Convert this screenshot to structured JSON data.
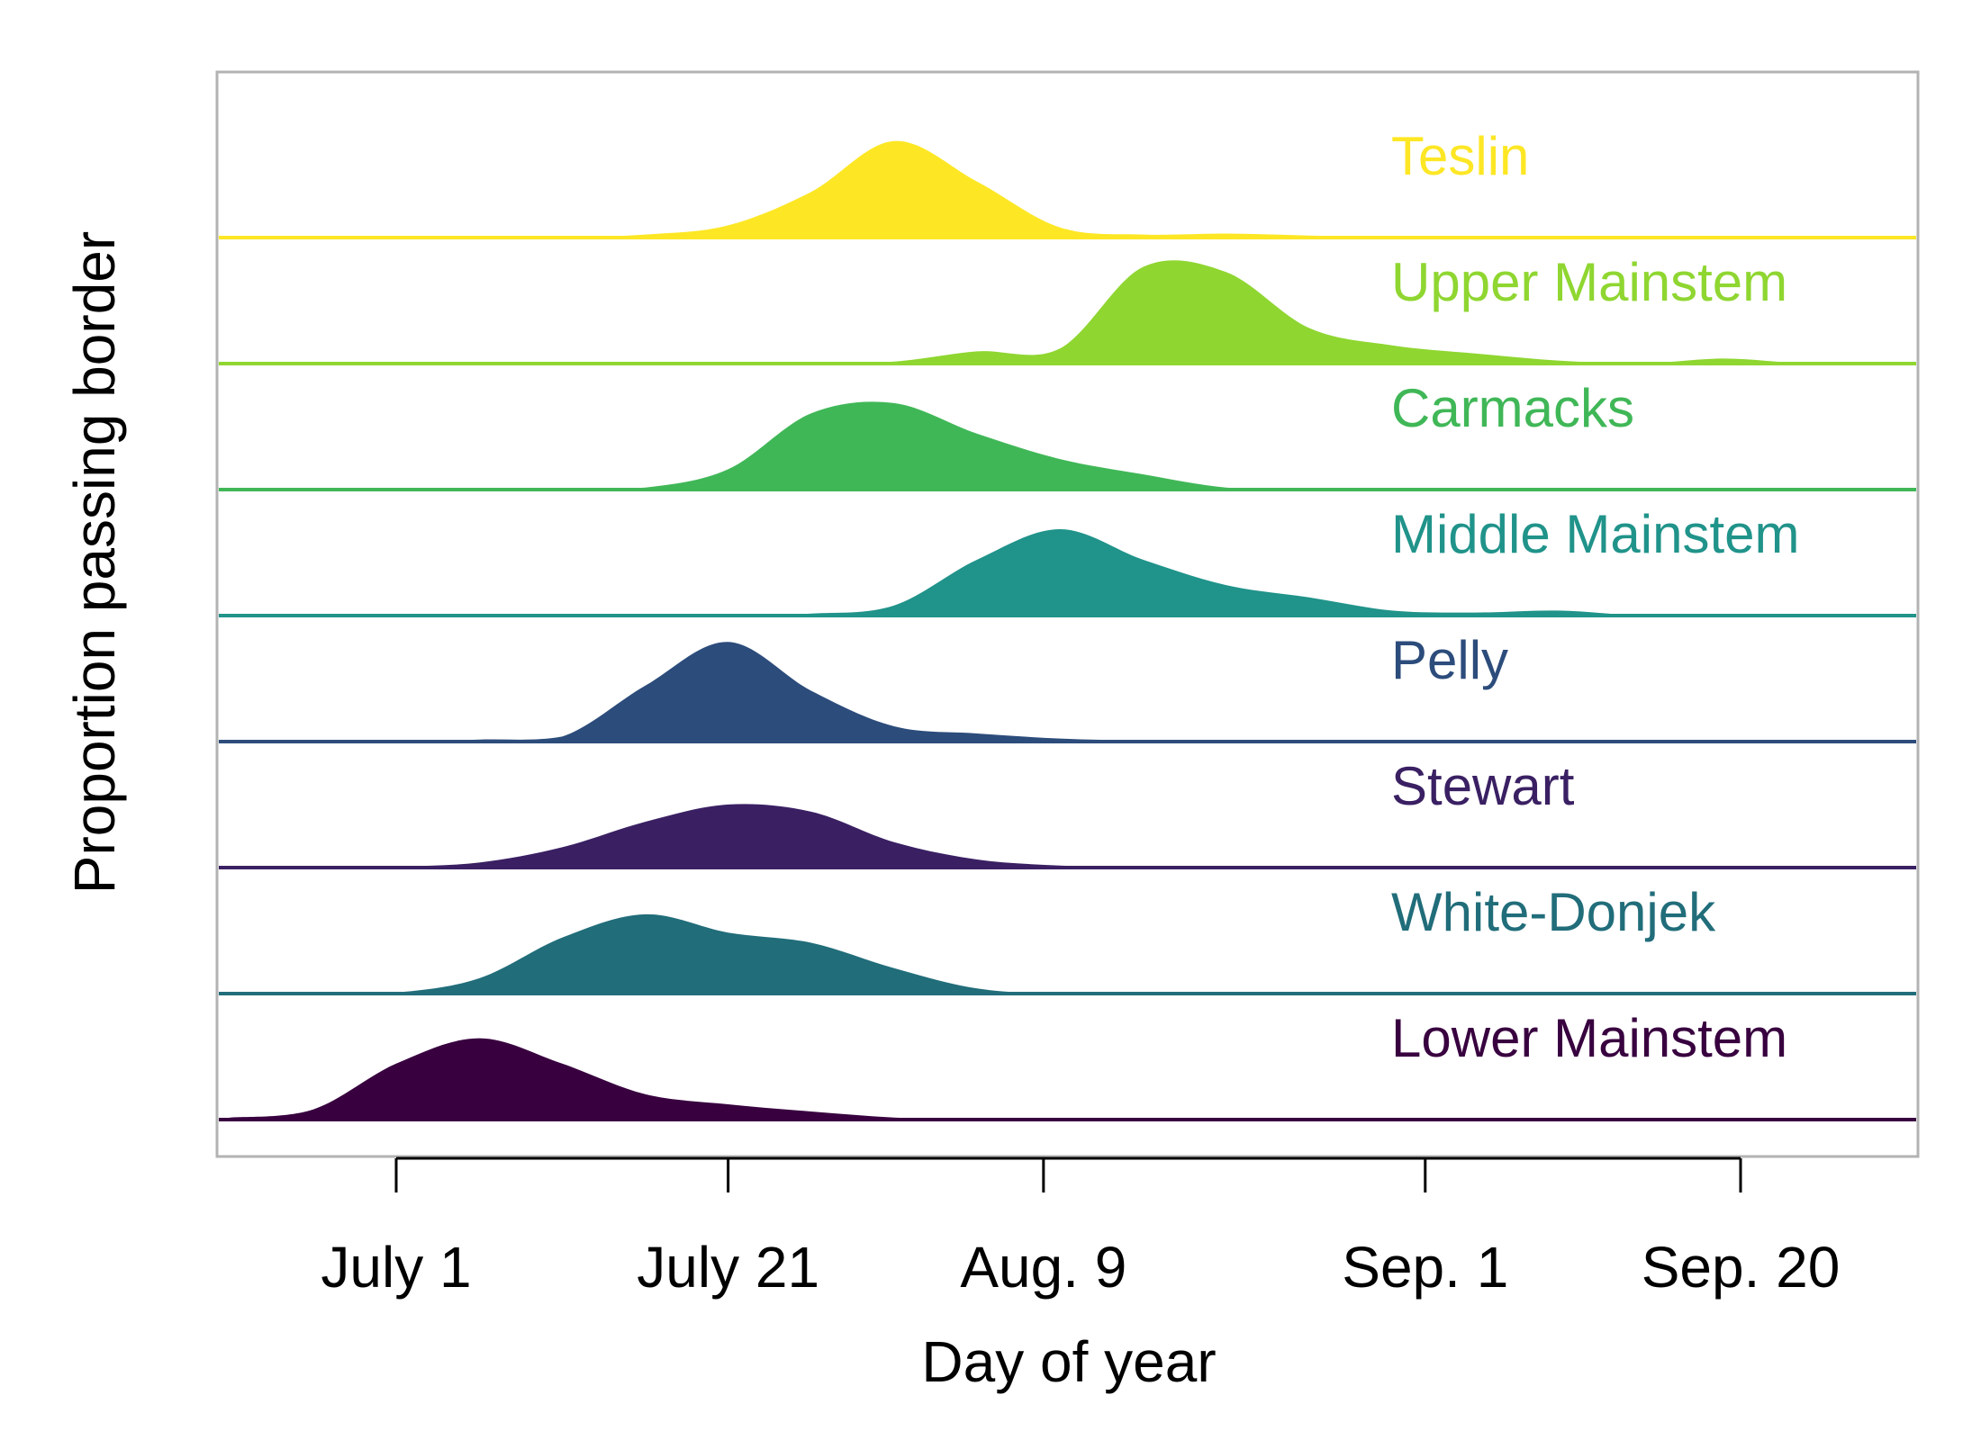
{
  "chart_data": {
    "type": "area",
    "subtype": "ridgeline",
    "xlabel": "Day of year",
    "ylabel": "Proportion passing border",
    "xlim": [
      "June 21",
      "Sep. 29"
    ],
    "x_ticks": [
      {
        "label": "July 1",
        "date": "July 1"
      },
      {
        "label": "July 21",
        "date": "July 21"
      },
      {
        "label": "Aug. 9",
        "date": "Aug. 9"
      },
      {
        "label": "Sep. 1",
        "date": "Sep. 1"
      },
      {
        "label": "Sep. 20",
        "date": "Sep. 20"
      }
    ],
    "x_dates": [
      "June 21",
      "June 26",
      "July 1",
      "July 6",
      "July 11",
      "July 16",
      "July 21",
      "July 26",
      "July 31",
      "Aug. 5",
      "Aug. 10",
      "Aug. 15",
      "Aug. 20",
      "Aug. 25",
      "Aug. 30",
      "Sep. 4",
      "Sep. 9",
      "Sep. 14",
      "Sep. 19",
      "Sep. 24",
      "Sep. 29"
    ],
    "grid": false,
    "legend": "direct labels at right",
    "series": [
      {
        "name": "Teslin",
        "color": "#FDE725",
        "values": [
          0,
          0,
          0,
          0,
          0,
          0.03,
          0.12,
          0.45,
          0.95,
          0.55,
          0.1,
          0.03,
          0.04,
          0.02,
          0,
          0,
          0,
          0,
          0,
          0,
          0
        ]
      },
      {
        "name": "Upper Mainstem",
        "color": "#8FD631",
        "values": [
          0,
          0,
          0,
          0,
          0,
          0,
          0,
          0,
          0.02,
          0.12,
          0.15,
          0.95,
          0.9,
          0.35,
          0.18,
          0.1,
          0.03,
          0,
          0.05,
          0,
          0
        ]
      },
      {
        "name": "Carmacks",
        "color": "#40B757",
        "values": [
          0,
          0,
          0,
          0,
          0,
          0.02,
          0.2,
          0.75,
          0.85,
          0.55,
          0.3,
          0.15,
          0.02,
          0,
          0,
          0,
          0,
          0,
          0,
          0,
          0
        ]
      },
      {
        "name": "Middle Mainstem",
        "color": "#20938A",
        "values": [
          0,
          0,
          0,
          0,
          0,
          0,
          0,
          0.02,
          0.1,
          0.55,
          0.85,
          0.55,
          0.3,
          0.18,
          0.05,
          0.03,
          0.05,
          0,
          0,
          0,
          0
        ]
      },
      {
        "name": "Pelly",
        "color": "#2C4C7B",
        "values": [
          0,
          0,
          0,
          0.02,
          0.05,
          0.55,
          0.98,
          0.5,
          0.15,
          0.08,
          0.03,
          0.01,
          0,
          0,
          0,
          0,
          0,
          0,
          0,
          0,
          0
        ]
      },
      {
        "name": "Stewart",
        "color": "#3A2063",
        "values": [
          0,
          0,
          0.01,
          0.05,
          0.2,
          0.45,
          0.62,
          0.55,
          0.25,
          0.08,
          0.02,
          0,
          0,
          0,
          0,
          0,
          0,
          0,
          0,
          0,
          0
        ]
      },
      {
        "name": "White-Donjek",
        "color": "#216D7A",
        "values": [
          0,
          0,
          0.01,
          0.15,
          0.55,
          0.78,
          0.6,
          0.5,
          0.25,
          0.05,
          0,
          0,
          0,
          0,
          0,
          0,
          0,
          0,
          0,
          0,
          0
        ]
      },
      {
        "name": "Lower Mainstem",
        "color": "#38003F",
        "values": [
          0.02,
          0.1,
          0.55,
          0.8,
          0.55,
          0.25,
          0.15,
          0.08,
          0.02,
          0,
          0,
          0,
          0,
          0,
          0,
          0,
          0,
          0,
          0,
          0,
          0
        ]
      }
    ]
  }
}
